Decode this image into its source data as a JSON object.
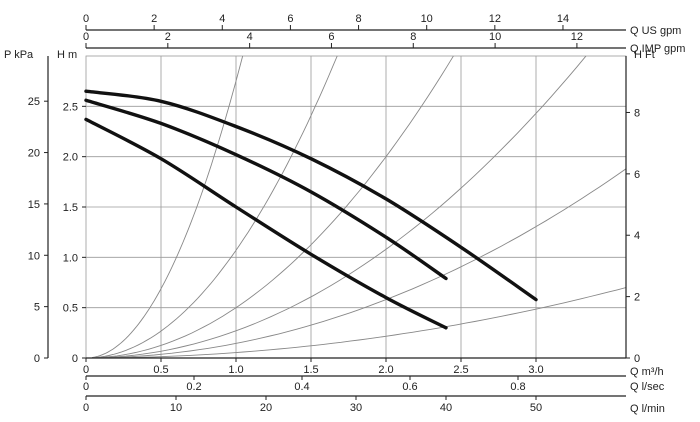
{
  "chart_data": {
    "type": "line",
    "title": "",
    "grid": true,
    "x_axes": [
      {
        "name": "Q US gpm",
        "position": "top",
        "ticks": [
          0,
          2,
          4,
          6,
          8,
          10,
          12,
          14
        ],
        "range": [
          0,
          15.85
        ]
      },
      {
        "name": "Q IMP gpm",
        "position": "top",
        "ticks": [
          0,
          2,
          4,
          6,
          8,
          10,
          12
        ],
        "range": [
          0,
          13.2
        ]
      },
      {
        "name": "Q m³/h",
        "position": "bottom",
        "ticks": [
          0,
          0.5,
          1.0,
          1.5,
          2.0,
          2.5,
          3.0
        ],
        "tick_labels": [
          "0",
          "0.5",
          "1.0",
          "1.5",
          "2.0",
          "2.5",
          "3.0"
        ],
        "range": [
          0,
          3.6
        ]
      },
      {
        "name": "Q l/sec",
        "position": "bottom",
        "ticks": [
          0,
          0.2,
          0.4,
          0.6,
          0.8
        ],
        "tick_labels": [
          "0",
          "0.2",
          "0.4",
          "0.6",
          "0.8"
        ],
        "range": [
          0,
          1.0
        ]
      },
      {
        "name": "Q l/min",
        "position": "bottom",
        "ticks": [
          0,
          10,
          20,
          30,
          40,
          50
        ],
        "range": [
          0,
          60
        ]
      }
    ],
    "y_axes": [
      {
        "name": "P kPa",
        "position": "left-outer",
        "ticks": [
          0,
          5,
          10,
          15,
          20,
          25
        ],
        "range": [
          0,
          29.4
        ]
      },
      {
        "name": "H m",
        "position": "left-inner",
        "ticks": [
          0,
          0.5,
          1.0,
          1.5,
          2.0,
          2.5
        ],
        "tick_labels": [
          "0",
          "0.5",
          "1.0",
          "1.5",
          "2.0",
          "2.5"
        ],
        "range": [
          0,
          3.0
        ]
      },
      {
        "name": "H Ft",
        "position": "right",
        "ticks": [
          0,
          2,
          4,
          6,
          8
        ],
        "range": [
          0,
          9.84
        ]
      }
    ],
    "series": [
      {
        "x": [
          0,
          0.5,
          1.0,
          1.5,
          2.0,
          2.5,
          3.0
        ],
        "y": [
          2.65,
          2.55,
          2.3,
          1.98,
          1.58,
          1.1,
          0.58
        ]
      },
      {
        "x": [
          0,
          0.5,
          1.0,
          1.5,
          2.0,
          2.4
        ],
        "y": [
          2.56,
          2.33,
          2.02,
          1.65,
          1.2,
          0.79
        ]
      },
      {
        "x": [
          0,
          0.5,
          1.0,
          1.5,
          2.0,
          2.4
        ],
        "y": [
          2.37,
          1.98,
          1.5,
          1.03,
          0.6,
          0.3
        ]
      }
    ],
    "system_curves": [
      {
        "k": 2.75
      },
      {
        "k": 1.07
      },
      {
        "k": 0.5
      },
      {
        "k": 0.27
      },
      {
        "k": 0.145
      },
      {
        "k": 0.054
      }
    ]
  },
  "colors": {
    "curve": "#111111",
    "system_curve": "#888888",
    "grid": "#9a9a9a"
  }
}
